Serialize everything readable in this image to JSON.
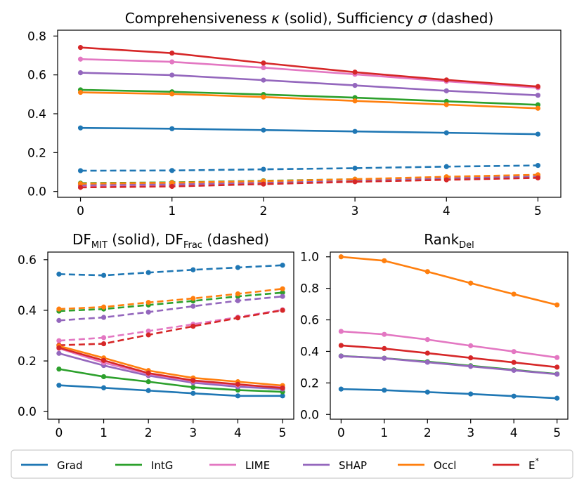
{
  "colors": {
    "Grad": "#1f77b4",
    "IntG": "#2ca02c",
    "LIME": "#e377c2",
    "SHAP": "#9467bd",
    "Occl": "#ff7f0e",
    "E*": "#d62728"
  },
  "legend": [
    {
      "key": "Grad",
      "label": "Grad"
    },
    {
      "key": "IntG",
      "label": "IntG"
    },
    {
      "key": "LIME",
      "label": "LIME"
    },
    {
      "key": "SHAP",
      "label": "SHAP"
    },
    {
      "key": "Occl",
      "label": "Occl"
    },
    {
      "key": "E*",
      "label": "E",
      "sup": "*"
    }
  ],
  "chart_data": [
    {
      "id": "top",
      "type": "line",
      "title_parts": [
        {
          "t": "Comprehensiveness "
        },
        {
          "t": "κ",
          "style": "italic"
        },
        {
          "t": " (solid), Sufficiency "
        },
        {
          "t": "σ",
          "style": "italic"
        },
        {
          "t": " (dashed)"
        }
      ],
      "x": [
        0,
        1,
        2,
        3,
        4,
        5
      ],
      "xlim": [
        -0.25,
        5.25
      ],
      "ylim": [
        -0.03,
        0.83
      ],
      "yticks": [
        0.0,
        0.2,
        0.4,
        0.6,
        0.8
      ],
      "ytick_labels": [
        "0.0",
        "0.2",
        "0.4",
        "0.6",
        "0.8"
      ],
      "xtick_labels": [
        "0",
        "1",
        "2",
        "3",
        "4",
        "5"
      ],
      "series": [
        {
          "name": "Grad",
          "style": "dashed",
          "values": [
            0.107,
            0.108,
            0.114,
            0.12,
            0.128,
            0.134
          ]
        },
        {
          "name": "IntG",
          "style": "dashed",
          "values": [
            0.043,
            0.047,
            0.055,
            0.063,
            0.072,
            0.08
          ]
        },
        {
          "name": "LIME",
          "style": "dashed",
          "values": [
            0.03,
            0.034,
            0.045,
            0.055,
            0.066,
            0.076
          ]
        },
        {
          "name": "SHAP",
          "style": "dashed",
          "values": [
            0.033,
            0.037,
            0.047,
            0.058,
            0.068,
            0.078
          ]
        },
        {
          "name": "Occl",
          "style": "dashed",
          "values": [
            0.04,
            0.045,
            0.053,
            0.063,
            0.076,
            0.086
          ]
        },
        {
          "name": "E*",
          "style": "dashed",
          "values": [
            0.021,
            0.026,
            0.038,
            0.05,
            0.06,
            0.07
          ]
        },
        {
          "name": "Grad",
          "style": "solid",
          "values": [
            0.327,
            0.323,
            0.316,
            0.309,
            0.302,
            0.295
          ]
        },
        {
          "name": "IntG",
          "style": "solid",
          "values": [
            0.523,
            0.513,
            0.499,
            0.483,
            0.464,
            0.446
          ]
        },
        {
          "name": "Occl",
          "style": "solid",
          "values": [
            0.51,
            0.502,
            0.486,
            0.466,
            0.447,
            0.428
          ]
        },
        {
          "name": "SHAP",
          "style": "solid",
          "values": [
            0.611,
            0.599,
            0.573,
            0.546,
            0.518,
            0.495
          ]
        },
        {
          "name": "LIME",
          "style": "solid",
          "values": [
            0.681,
            0.667,
            0.637,
            0.603,
            0.567,
            0.534
          ]
        },
        {
          "name": "E*",
          "style": "solid",
          "values": [
            0.741,
            0.712,
            0.661,
            0.614,
            0.574,
            0.54
          ]
        }
      ]
    },
    {
      "id": "bl",
      "type": "line",
      "title_parts": [
        {
          "t": "DF"
        },
        {
          "t": "MIT",
          "sub": true
        },
        {
          "t": " (solid), DF"
        },
        {
          "t": "Frac",
          "sub": true
        },
        {
          "t": " (dashed)"
        }
      ],
      "x": [
        0,
        1,
        2,
        3,
        4,
        5
      ],
      "xlim": [
        -0.25,
        5.25
      ],
      "ylim": [
        -0.03,
        0.63
      ],
      "yticks": [
        0.0,
        0.2,
        0.4,
        0.6
      ],
      "ytick_labels": [
        "0.0",
        "0.2",
        "0.4",
        "0.6"
      ],
      "xtick_labels": [
        "0",
        "1",
        "2",
        "3",
        "4",
        "5"
      ],
      "series": [
        {
          "name": "Grad",
          "style": "dashed",
          "values": [
            0.543,
            0.538,
            0.549,
            0.56,
            0.569,
            0.578
          ]
        },
        {
          "name": "IntG",
          "style": "dashed",
          "values": [
            0.397,
            0.405,
            0.421,
            0.437,
            0.455,
            0.47
          ]
        },
        {
          "name": "SHAP",
          "style": "dashed",
          "values": [
            0.36,
            0.372,
            0.393,
            0.416,
            0.438,
            0.455
          ]
        },
        {
          "name": "Occl",
          "style": "dashed",
          "values": [
            0.405,
            0.413,
            0.431,
            0.447,
            0.465,
            0.485
          ]
        },
        {
          "name": "LIME",
          "style": "dashed",
          "values": [
            0.28,
            0.292,
            0.318,
            0.345,
            0.373,
            0.402
          ]
        },
        {
          "name": "E*",
          "style": "dashed",
          "values": [
            0.262,
            0.268,
            0.303,
            0.337,
            0.37,
            0.4
          ]
        },
        {
          "name": "Grad",
          "style": "solid",
          "values": [
            0.104,
            0.094,
            0.083,
            0.072,
            0.062,
            0.062
          ]
        },
        {
          "name": "IntG",
          "style": "solid",
          "values": [
            0.168,
            0.138,
            0.118,
            0.096,
            0.085,
            0.078
          ]
        },
        {
          "name": "SHAP",
          "style": "solid",
          "values": [
            0.23,
            0.182,
            0.142,
            0.114,
            0.098,
            0.089
          ]
        },
        {
          "name": "LIME",
          "style": "solid",
          "values": [
            0.25,
            0.193,
            0.149,
            0.12,
            0.105,
            0.096
          ]
        },
        {
          "name": "Occl",
          "style": "solid",
          "values": [
            0.259,
            0.212,
            0.162,
            0.133,
            0.118,
            0.103
          ]
        },
        {
          "name": "E*",
          "style": "solid",
          "values": [
            0.252,
            0.202,
            0.152,
            0.123,
            0.108,
            0.093
          ]
        }
      ]
    },
    {
      "id": "br",
      "type": "line",
      "title_parts": [
        {
          "t": "Rank"
        },
        {
          "t": "Del",
          "sub": true
        }
      ],
      "x": [
        0,
        1,
        2,
        3,
        4,
        5
      ],
      "xlim": [
        -0.25,
        5.25
      ],
      "ylim": [
        -0.03,
        1.03
      ],
      "yticks": [
        0.0,
        0.2,
        0.4,
        0.6,
        0.8,
        1.0
      ],
      "ytick_labels": [
        "0.0",
        "0.2",
        "0.4",
        "0.6",
        "0.8",
        "1.0"
      ],
      "xtick_labels": [
        "0",
        "1",
        "2",
        "3",
        "4",
        "5"
      ],
      "series": [
        {
          "name": "Grad",
          "style": "solid",
          "values": [
            0.161,
            0.154,
            0.142,
            0.13,
            0.116,
            0.103
          ]
        },
        {
          "name": "IntG",
          "style": "solid",
          "values": [
            0.371,
            0.357,
            0.335,
            0.309,
            0.283,
            0.257
          ]
        },
        {
          "name": "SHAP",
          "style": "solid",
          "values": [
            0.37,
            0.356,
            0.331,
            0.305,
            0.28,
            0.255
          ]
        },
        {
          "name": "E*",
          "style": "solid",
          "values": [
            0.438,
            0.418,
            0.389,
            0.359,
            0.33,
            0.3
          ]
        },
        {
          "name": "LIME",
          "style": "solid",
          "values": [
            0.527,
            0.508,
            0.475,
            0.436,
            0.399,
            0.361
          ]
        },
        {
          "name": "Occl",
          "style": "solid",
          "values": [
            1.0,
            0.975,
            0.906,
            0.833,
            0.763,
            0.695
          ]
        }
      ]
    }
  ]
}
